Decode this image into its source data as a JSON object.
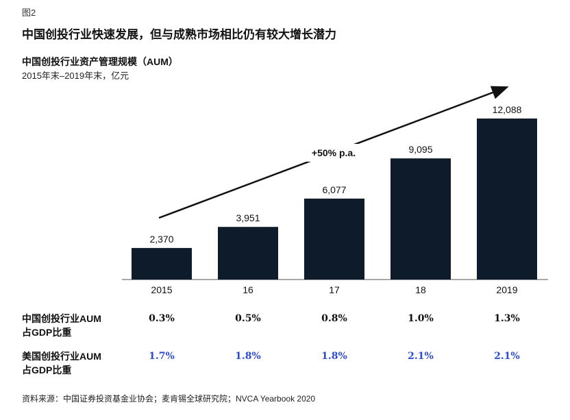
{
  "figure_label": "图2",
  "main_title": "中国创投行业快速发展，但与成熟市场相比仍有较大增长潜力",
  "chart_data": {
    "type": "bar",
    "title": "中国创投行业资产管理规模（AUM）",
    "subtitle": "2015年末–2019年末，亿元",
    "categories": [
      "2015",
      "16",
      "17",
      "18",
      "2019"
    ],
    "values": [
      2370,
      3951,
      6077,
      9095,
      12088
    ],
    "value_labels": [
      "2,370",
      "3,951",
      "6,077",
      "9,095",
      "12,088"
    ],
    "bar_color": "#0d1b2a",
    "growth_annotation": "+50% p.a.",
    "ylim": [
      0,
      12088
    ]
  },
  "table": {
    "rows": [
      {
        "label_line1": "中国创投行业AUM",
        "label_line2": "占GDP比重",
        "values": [
          "0.3%",
          "0.5%",
          "0.8%",
          "1.0%",
          "1.3%"
        ],
        "color": "#111111"
      },
      {
        "label_line1": "美国创投行业AUM",
        "label_line2": "占GDP比重",
        "values": [
          "1.7%",
          "1.8%",
          "1.8%",
          "2.1%",
          "2.1%"
        ],
        "color": "#2b4bd6"
      }
    ]
  },
  "source": "资料来源：中国证券投资基金业协会；麦肯锡全球研究院；NVCA Yearbook 2020"
}
